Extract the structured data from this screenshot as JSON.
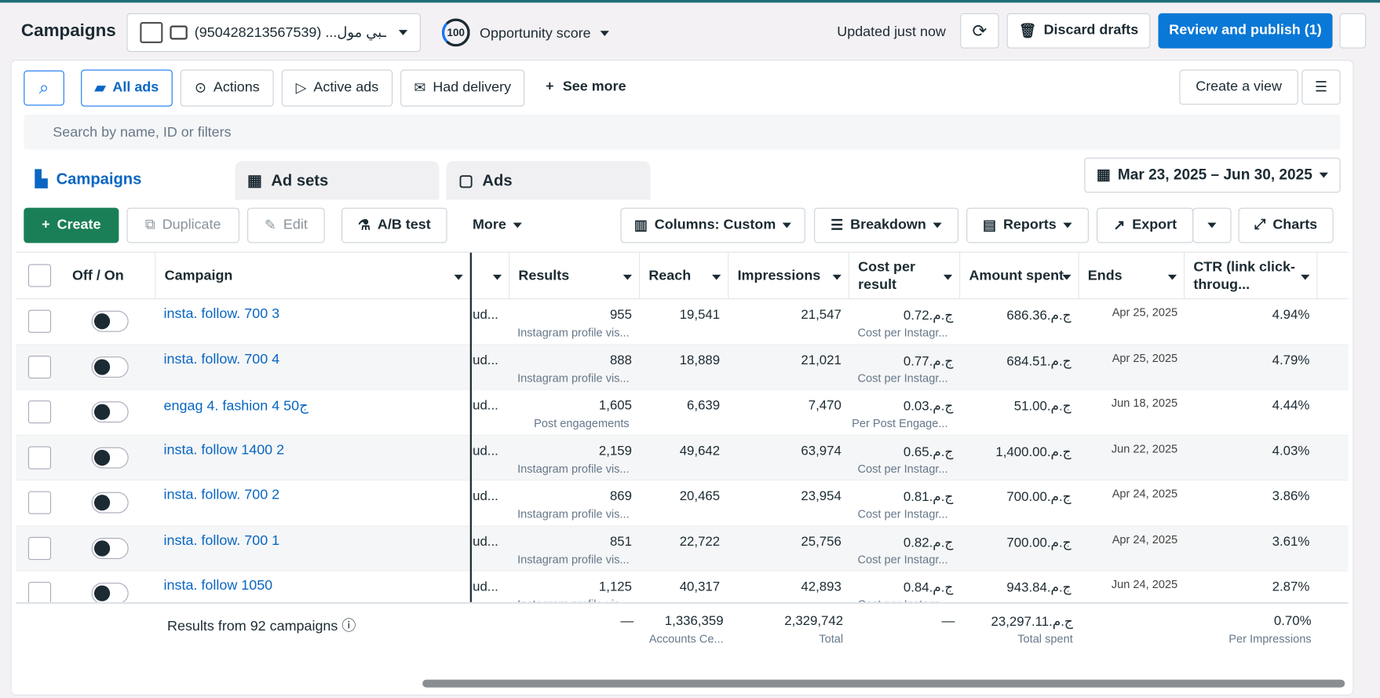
{
  "header": {
    "title": "Campaigns",
    "account": "(950428213567539) ...ـبي مول",
    "score": "100",
    "score_label": "Opportunity score",
    "updated": "Updated just now",
    "discard": "Discard drafts",
    "publish": "Review and publish (1)"
  },
  "toolbar": {
    "filters": [
      "All ads",
      "Actions",
      "Active ads",
      "Had delivery"
    ],
    "see_more": "See more",
    "create_view": "Create a view",
    "search_placeholder": "Search by name, ID or filters"
  },
  "tabs": [
    "Campaigns",
    "Ad sets",
    "Ads"
  ],
  "date_range": "Mar 23, 2025 – Jun 30, 2025",
  "actions": {
    "create": "Create",
    "duplicate": "Duplicate",
    "edit": "Edit",
    "ab_test": "A/B test",
    "more": "More",
    "columns": "Columns: Custom",
    "breakdown": "Breakdown",
    "reports": "Reports",
    "export": "Export",
    "charts": "Charts"
  },
  "table": {
    "columns": [
      "Off / On",
      "Campaign",
      "Results",
      "Reach",
      "Impressions",
      "Cost per result",
      "Amount spent",
      "Ends",
      "CTR (link click-throug..."
    ],
    "rows": [
      [
        "insta. follow. 700 3",
        "ud...",
        "955",
        "Instagram profile vis...",
        "19,541",
        "21,547",
        "ج.م.0.72",
        "Cost per Instagr...",
        "ج.م.686.36",
        "Apr 25, 2025",
        "4.94%"
      ],
      [
        "insta. follow. 700 4",
        "ud...",
        "888",
        "Instagram profile vis...",
        "18,889",
        "21,021",
        "ج.م.0.77",
        "Cost per Instagr...",
        "ج.م.684.51",
        "Apr 25, 2025",
        "4.79%"
      ],
      [
        "engag 4. fashion 4 50ج",
        "ud...",
        "1,605",
        "Post engagements",
        "6,639",
        "7,470",
        "ج.م.0.03",
        "Per Post Engage...",
        "ج.م.51.00",
        "Jun 18, 2025",
        "4.44%"
      ],
      [
        "insta. follow 1400 2",
        "ud...",
        "2,159",
        "Instagram profile vis...",
        "49,642",
        "63,974",
        "ج.م.0.65",
        "Cost per Instagr...",
        "ج.م.1,400.00",
        "Jun 22, 2025",
        "4.03%"
      ],
      [
        "insta. follow. 700 2",
        "ud...",
        "869",
        "Instagram profile vis...",
        "20,465",
        "23,954",
        "ج.م.0.81",
        "Cost per Instagr...",
        "ج.م.700.00",
        "Apr 24, 2025",
        "3.86%"
      ],
      [
        "insta. follow. 700 1",
        "ud...",
        "851",
        "Instagram profile vis...",
        "22,722",
        "25,756",
        "ج.م.0.82",
        "Cost per Instagr...",
        "ج.م.700.00",
        "Apr 24, 2025",
        "3.61%"
      ],
      [
        "insta. follow 1050",
        "ud...",
        "1,125",
        "Instagram profile vis...",
        "40,317",
        "42,893",
        "ج.م.0.84",
        "Cost per Instagr...",
        "ج.م.943.84",
        "Jun 24, 2025",
        "2.87%"
      ]
    ],
    "footer": {
      "label": "Results from 92 campaigns",
      "results": "—",
      "reach": "1,336,359",
      "reach_sub": "Accounts Ce...",
      "impressions": "2,329,742",
      "impressions_sub": "Total",
      "cost": "—",
      "amount": "ج.م.23,297.11",
      "amount_sub": "Total spent",
      "ctr": "0.70%",
      "ctr_sub": "Per Impressions"
    }
  }
}
